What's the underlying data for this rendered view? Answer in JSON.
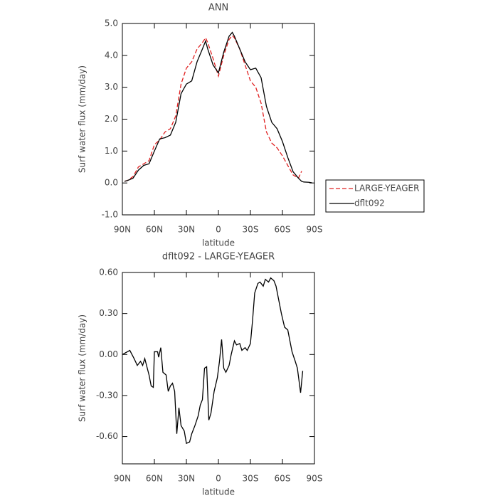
{
  "chart_data": [
    {
      "type": "line",
      "title": "ANN",
      "x_label": "latitude",
      "y_label": "Surf water flux (mm/day)",
      "x": [
        88,
        85,
        80,
        75,
        70,
        65,
        60,
        55,
        50,
        45,
        40,
        35,
        30,
        25,
        20,
        15,
        12,
        10,
        5,
        0,
        -5,
        -10,
        -13,
        -15,
        -20,
        -25,
        -30,
        -35,
        -40,
        -45,
        -50,
        -55,
        -60,
        -65,
        -70,
        -75,
        -78,
        -80,
        -85,
        -88
      ],
      "series": [
        {
          "name": "LARGE-YEAGER",
          "color": "#e02020",
          "line_style": "dashed",
          "values": [
            0.05,
            0.08,
            0.2,
            0.5,
            0.6,
            0.7,
            1.2,
            1.35,
            1.6,
            1.7,
            2.1,
            3.1,
            3.6,
            3.8,
            4.2,
            4.4,
            4.55,
            4.4,
            3.9,
            3.35,
            4.0,
            4.5,
            4.62,
            4.55,
            4.2,
            3.7,
            3.2,
            3.0,
            2.5,
            1.6,
            1.25,
            1.1,
            0.85,
            0.55,
            0.25,
            0.15,
            0.37,
            null,
            null,
            null
          ]
        },
        {
          "name": "dflt092",
          "color": "#000000",
          "line_style": "solid",
          "values": [
            0.05,
            0.08,
            0.15,
            0.4,
            0.55,
            0.6,
            1.0,
            1.38,
            1.42,
            1.5,
            1.9,
            2.8,
            3.1,
            3.2,
            3.8,
            4.2,
            4.45,
            4.2,
            3.7,
            3.45,
            4.1,
            4.6,
            4.72,
            4.6,
            4.2,
            3.8,
            3.55,
            3.6,
            3.3,
            2.4,
            1.9,
            1.7,
            1.3,
            0.8,
            0.35,
            0.15,
            0.05,
            0.03,
            0.02,
            0.0
          ]
        }
      ],
      "xlim": [
        90,
        -90
      ],
      "xticks": [
        {
          "value": 90,
          "label": "90N"
        },
        {
          "value": 60,
          "label": "60N"
        },
        {
          "value": 30,
          "label": "30N"
        },
        0,
        {
          "value": -30,
          "label": "30S"
        },
        {
          "value": -60,
          "label": "60S"
        },
        {
          "value": -90,
          "label": "90S"
        }
      ],
      "ylim": [
        -1.0,
        5.0
      ],
      "yticks": [
        {
          "value": -1.0,
          "label": "-1.0"
        },
        {
          "value": 0.0,
          "label": "0.0"
        },
        {
          "value": 1.0,
          "label": "1.0"
        },
        {
          "value": 2.0,
          "label": "2.0"
        },
        {
          "value": 3.0,
          "label": "3.0"
        },
        {
          "value": 4.0,
          "label": "4.0"
        },
        {
          "value": 5.0,
          "label": "5.0"
        }
      ],
      "legend": "outside-right"
    },
    {
      "type": "line",
      "title": "dflt092 - LARGE-YEAGER",
      "x_label": "latitude",
      "y_label": "Surf water flux (mm/day)",
      "x": [
        90,
        83,
        79,
        76,
        73,
        71,
        69,
        65,
        63,
        61,
        60,
        57,
        56,
        54,
        52,
        49,
        47,
        45,
        43,
        41,
        39,
        37,
        35,
        32,
        30,
        27,
        25,
        22,
        19,
        17,
        15,
        13,
        11,
        9,
        7,
        4,
        1,
        -1,
        -3,
        -5,
        -7,
        -10,
        -12,
        -15,
        -17,
        -20,
        -22,
        -25,
        -27,
        -30,
        -32,
        -34,
        -37,
        -39,
        -42,
        -44,
        -47,
        -49,
        -52,
        -54,
        -56,
        -59,
        -62,
        -65,
        -67,
        -69,
        -72,
        -74,
        -77,
        -79
      ],
      "series": [
        {
          "color": "#000000",
          "line_style": "solid",
          "values": [
            0.0,
            0.03,
            -0.03,
            -0.08,
            -0.05,
            -0.08,
            -0.03,
            -0.15,
            -0.23,
            -0.24,
            0.02,
            0.02,
            -0.02,
            0.05,
            -0.13,
            -0.15,
            -0.27,
            -0.23,
            -0.21,
            -0.27,
            -0.58,
            -0.39,
            -0.52,
            -0.56,
            -0.65,
            -0.64,
            -0.58,
            -0.52,
            -0.45,
            -0.37,
            -0.33,
            -0.1,
            -0.09,
            -0.48,
            -0.43,
            -0.27,
            -0.17,
            -0.05,
            0.11,
            -0.1,
            -0.13,
            -0.08,
            0.0,
            0.1,
            0.07,
            0.08,
            0.03,
            0.05,
            0.03,
            0.08,
            0.25,
            0.45,
            0.52,
            0.53,
            0.5,
            0.55,
            0.53,
            0.56,
            0.54,
            0.5,
            0.42,
            0.3,
            0.2,
            0.18,
            0.1,
            0.02,
            -0.05,
            -0.1,
            -0.28,
            -0.12
          ]
        }
      ],
      "xlim": [
        90,
        -90
      ],
      "xticks": [
        {
          "value": 90,
          "label": "90N"
        },
        {
          "value": 60,
          "label": "60N"
        },
        {
          "value": 30,
          "label": "30N"
        },
        0,
        {
          "value": -30,
          "label": "30S"
        },
        {
          "value": -60,
          "label": "60S"
        },
        {
          "value": -90,
          "label": "90S"
        }
      ],
      "ylim": [
        -0.8,
        0.6
      ],
      "yticks": [
        {
          "value": -0.6,
          "label": "-0.60"
        },
        {
          "value": -0.3,
          "label": "-0.30"
        },
        {
          "value": 0.0,
          "label": "0.00"
        },
        {
          "value": 0.3,
          "label": "0.30"
        },
        {
          "value": 0.6,
          "label": "0.60"
        }
      ]
    }
  ]
}
